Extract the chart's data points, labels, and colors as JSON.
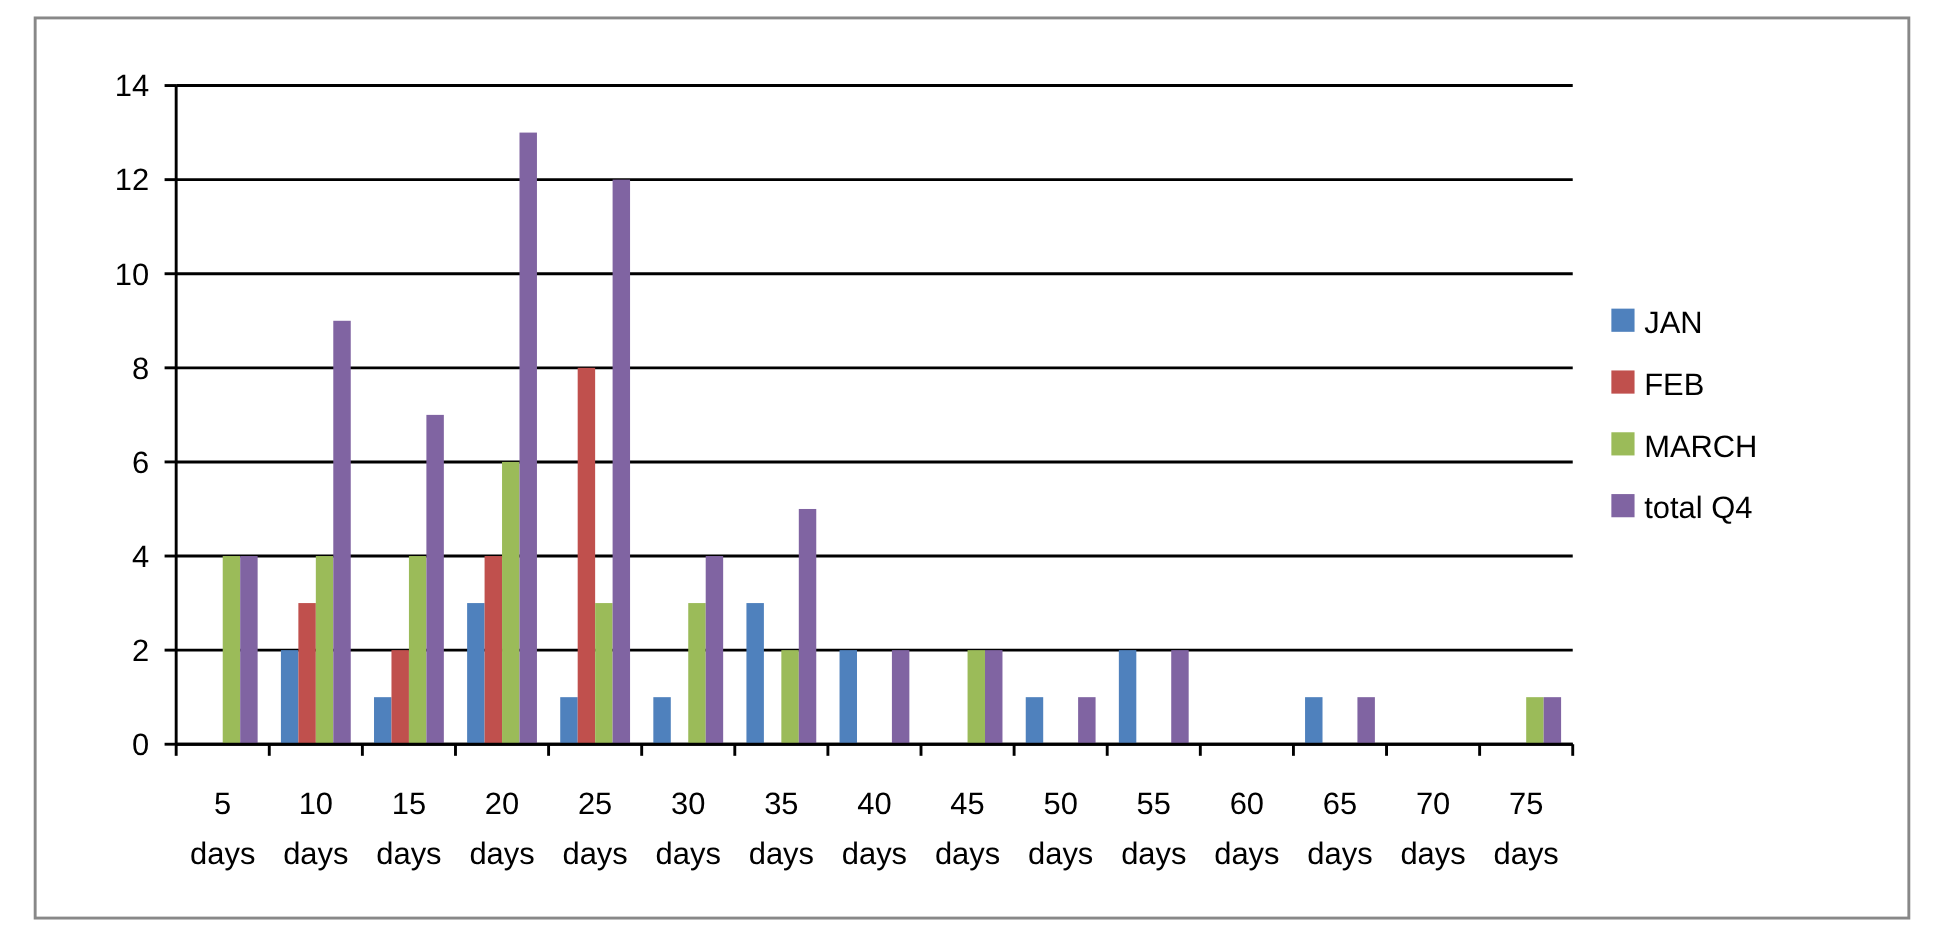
{
  "chart_data": {
    "type": "bar",
    "categories": [
      "5 days",
      "10 days",
      "15 days",
      "20 days",
      "25 days",
      "30 days",
      "35 days",
      "40 days",
      "45 days",
      "50 days",
      "55 days",
      "60 days",
      "65 days",
      "70 days",
      "75 days"
    ],
    "series": [
      {
        "name": "JAN",
        "color": "#4f81bd",
        "values": [
          0,
          2,
          1,
          3,
          1,
          1,
          3,
          2,
          0,
          1,
          2,
          0,
          1,
          0,
          0
        ]
      },
      {
        "name": "FEB",
        "color": "#c0504d",
        "values": [
          0,
          3,
          2,
          4,
          8,
          0,
          0,
          0,
          0,
          0,
          0,
          0,
          0,
          0,
          0
        ]
      },
      {
        "name": "MARCH",
        "color": "#9bbb59",
        "values": [
          4,
          4,
          4,
          6,
          3,
          3,
          2,
          0,
          2,
          0,
          0,
          0,
          0,
          0,
          1
        ]
      },
      {
        "name": "total Q4",
        "color": "#8064a2",
        "values": [
          4,
          9,
          7,
          13,
          12,
          4,
          5,
          2,
          2,
          1,
          2,
          0,
          1,
          0,
          1
        ]
      }
    ],
    "ylim": [
      0,
      14
    ],
    "yticks": [
      0,
      2,
      4,
      6,
      8,
      10,
      12,
      14
    ],
    "grid": "y",
    "legend": "right"
  }
}
